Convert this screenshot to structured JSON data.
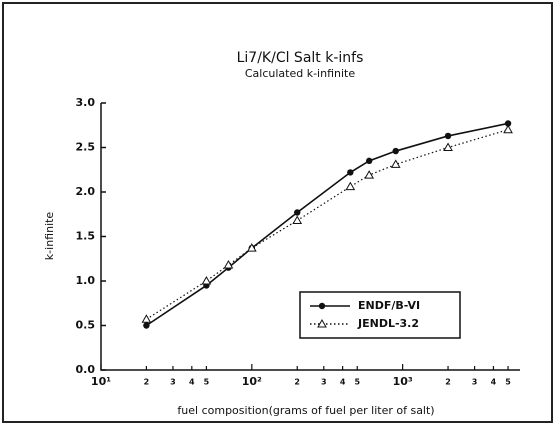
{
  "chart_data": {
    "type": "line",
    "title": "Li7/K/Cl Salt k-infs",
    "subtitle": "Calculated k-infinite",
    "x_label": "fuel composition(grams of fuel per liter of salt)",
    "y_label": "k-infinite",
    "x_scale": "log",
    "xlim": [
      10,
      6000
    ],
    "xticks": [
      {
        "value": 10,
        "label": "10¹"
      },
      {
        "value": 20,
        "label": "2"
      },
      {
        "value": 30,
        "label": "3"
      },
      {
        "value": 40,
        "label": "4"
      },
      {
        "value": 50,
        "label": "5"
      },
      {
        "value": 100,
        "label": "10²"
      },
      {
        "value": 200,
        "label": "2"
      },
      {
        "value": 300,
        "label": "3"
      },
      {
        "value": 400,
        "label": "4"
      },
      {
        "value": 500,
        "label": "5"
      },
      {
        "value": 1000,
        "label": "10³"
      },
      {
        "value": 2000,
        "label": "2"
      },
      {
        "value": 3000,
        "label": "3"
      },
      {
        "value": 4000,
        "label": "4"
      },
      {
        "value": 5000,
        "label": "5"
      }
    ],
    "ylim": [
      0,
      3
    ],
    "yticks": [
      {
        "value": 0,
        "label": "0.0"
      },
      {
        "value": 0.5,
        "label": "0.5"
      },
      {
        "value": 1,
        "label": "1.0"
      },
      {
        "value": 1.5,
        "label": "1.5"
      },
      {
        "value": 2,
        "label": "2.0"
      },
      {
        "value": 2.5,
        "label": "2.5"
      },
      {
        "value": 3,
        "label": "3.0"
      }
    ],
    "legend": "lower right",
    "x": [
      20,
      50,
      70,
      100,
      200,
      450,
      600,
      900,
      2000,
      5000
    ],
    "series": [
      {
        "name": "ENDF/B-VI",
        "color": "#111111",
        "line": "solid",
        "marker": "circle",
        "values": [
          0.5,
          0.95,
          1.15,
          1.37,
          1.77,
          2.22,
          2.35,
          2.46,
          2.63,
          2.77
        ]
      },
      {
        "name": "JENDL-3.2",
        "color": "#111111",
        "line": "dotted",
        "marker": "triangle",
        "values": [
          0.57,
          1.0,
          1.18,
          1.37,
          1.68,
          2.06,
          2.19,
          2.31,
          2.5,
          2.7
        ]
      }
    ]
  }
}
